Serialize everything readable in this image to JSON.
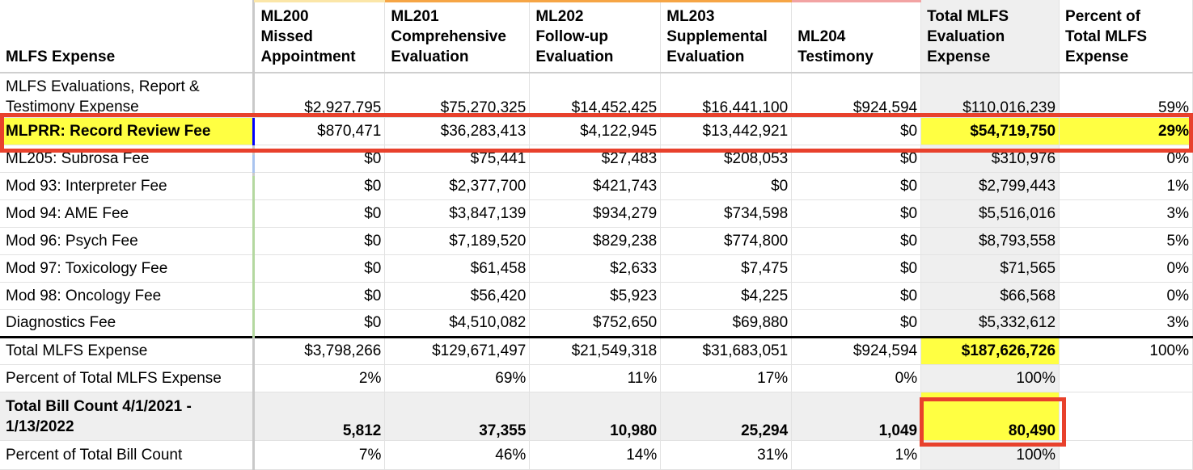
{
  "header": {
    "expense": "MLFS Expense",
    "ml200": [
      "ML200",
      "Missed",
      "Appointment"
    ],
    "ml201": [
      "ML201",
      "Comprehensive",
      "Evaluation"
    ],
    "ml202": [
      "ML202",
      "Follow-up",
      "Evaluation"
    ],
    "ml203": [
      "ML203",
      "Supplemental",
      "Evaluation"
    ],
    "ml204": [
      "ML204",
      "Testimony"
    ],
    "total": [
      "Total MLFS",
      "Evaluation",
      "Expense"
    ],
    "percent": [
      "Percent of",
      "Total MLFS",
      "Expense"
    ]
  },
  "rows": [
    {
      "label": "MLFS Evaluations, Report & Testimony Expense",
      "ml200": "$2,927,795",
      "ml201": "$75,270,325",
      "ml202": "$14,452,425",
      "ml203": "$16,441,100",
      "ml204": "$924,594",
      "total": "$110,016,239",
      "percent": "59%"
    },
    {
      "label": "MLPRR: Record Review Fee",
      "ml200": "$870,471",
      "ml201": "$36,283,413",
      "ml202": "$4,122,945",
      "ml203": "$13,442,921",
      "ml204": "$0",
      "total": "$54,719,750",
      "percent": "29%"
    },
    {
      "label": "ML205: Subrosa Fee",
      "ml200": "$0",
      "ml201": "$75,441",
      "ml202": "$27,483",
      "ml203": "$208,053",
      "ml204": "$0",
      "total": "$310,976",
      "percent": "0%"
    },
    {
      "label": "Mod 93: Interpreter Fee",
      "ml200": "$0",
      "ml201": "$2,377,700",
      "ml202": "$421,743",
      "ml203": "$0",
      "ml204": "$0",
      "total": "$2,799,443",
      "percent": "1%"
    },
    {
      "label": "Mod 94: AME Fee",
      "ml200": "$0",
      "ml201": "$3,847,139",
      "ml202": "$934,279",
      "ml203": "$734,598",
      "ml204": "$0",
      "total": "$5,516,016",
      "percent": "3%"
    },
    {
      "label": "Mod 96: Psych Fee",
      "ml200": "$0",
      "ml201": "$7,189,520",
      "ml202": "$829,238",
      "ml203": "$774,800",
      "ml204": "$0",
      "total": "$8,793,558",
      "percent": "5%"
    },
    {
      "label": "Mod 97: Toxicology Fee",
      "ml200": "$0",
      "ml201": "$61,458",
      "ml202": "$2,633",
      "ml203": "$7,475",
      "ml204": "$0",
      "total": "$71,565",
      "percent": "0%"
    },
    {
      "label": "Mod 98: Oncology Fee",
      "ml200": "$0",
      "ml201": "$56,420",
      "ml202": "$5,923",
      "ml203": "$4,225",
      "ml204": "$0",
      "total": "$66,568",
      "percent": "0%"
    },
    {
      "label": "Diagnostics Fee",
      "ml200": "$0",
      "ml201": "$4,510,082",
      "ml202": "$752,650",
      "ml203": "$69,880",
      "ml204": "$0",
      "total": "$5,332,612",
      "percent": "3%"
    }
  ],
  "totals": {
    "label": "Total MLFS  Expense",
    "ml200": "$3,798,266",
    "ml201": "$129,671,497",
    "ml202": "$21,549,318",
    "ml203": "$31,683,051",
    "ml204": "$924,594",
    "total": "$187,626,726",
    "percent": "100%"
  },
  "pct_row": {
    "label": "Percent of Total MLFS Expense",
    "ml200": "2%",
    "ml201": "69%",
    "ml202": "11%",
    "ml203": "17%",
    "ml204": "0%",
    "total": "100%"
  },
  "bill_count": {
    "label": "Total Bill Count 4/1/2021 - 1/13/2022",
    "ml200": "5,812",
    "ml201": "37,355",
    "ml202": "10,980",
    "ml203": "25,294",
    "ml204": "1,049",
    "total": "80,490"
  },
  "bill_pct": {
    "label": "Percent of Total Bill Count",
    "ml200": "7%",
    "ml201": "46%",
    "ml202": "14%",
    "ml203": "31%",
    "ml204": "1%",
    "total": "100%"
  },
  "colors": {
    "highlight": "#ffff42",
    "callout": "#e8412c",
    "shade": "#efefef",
    "selection": "#0000ff"
  }
}
